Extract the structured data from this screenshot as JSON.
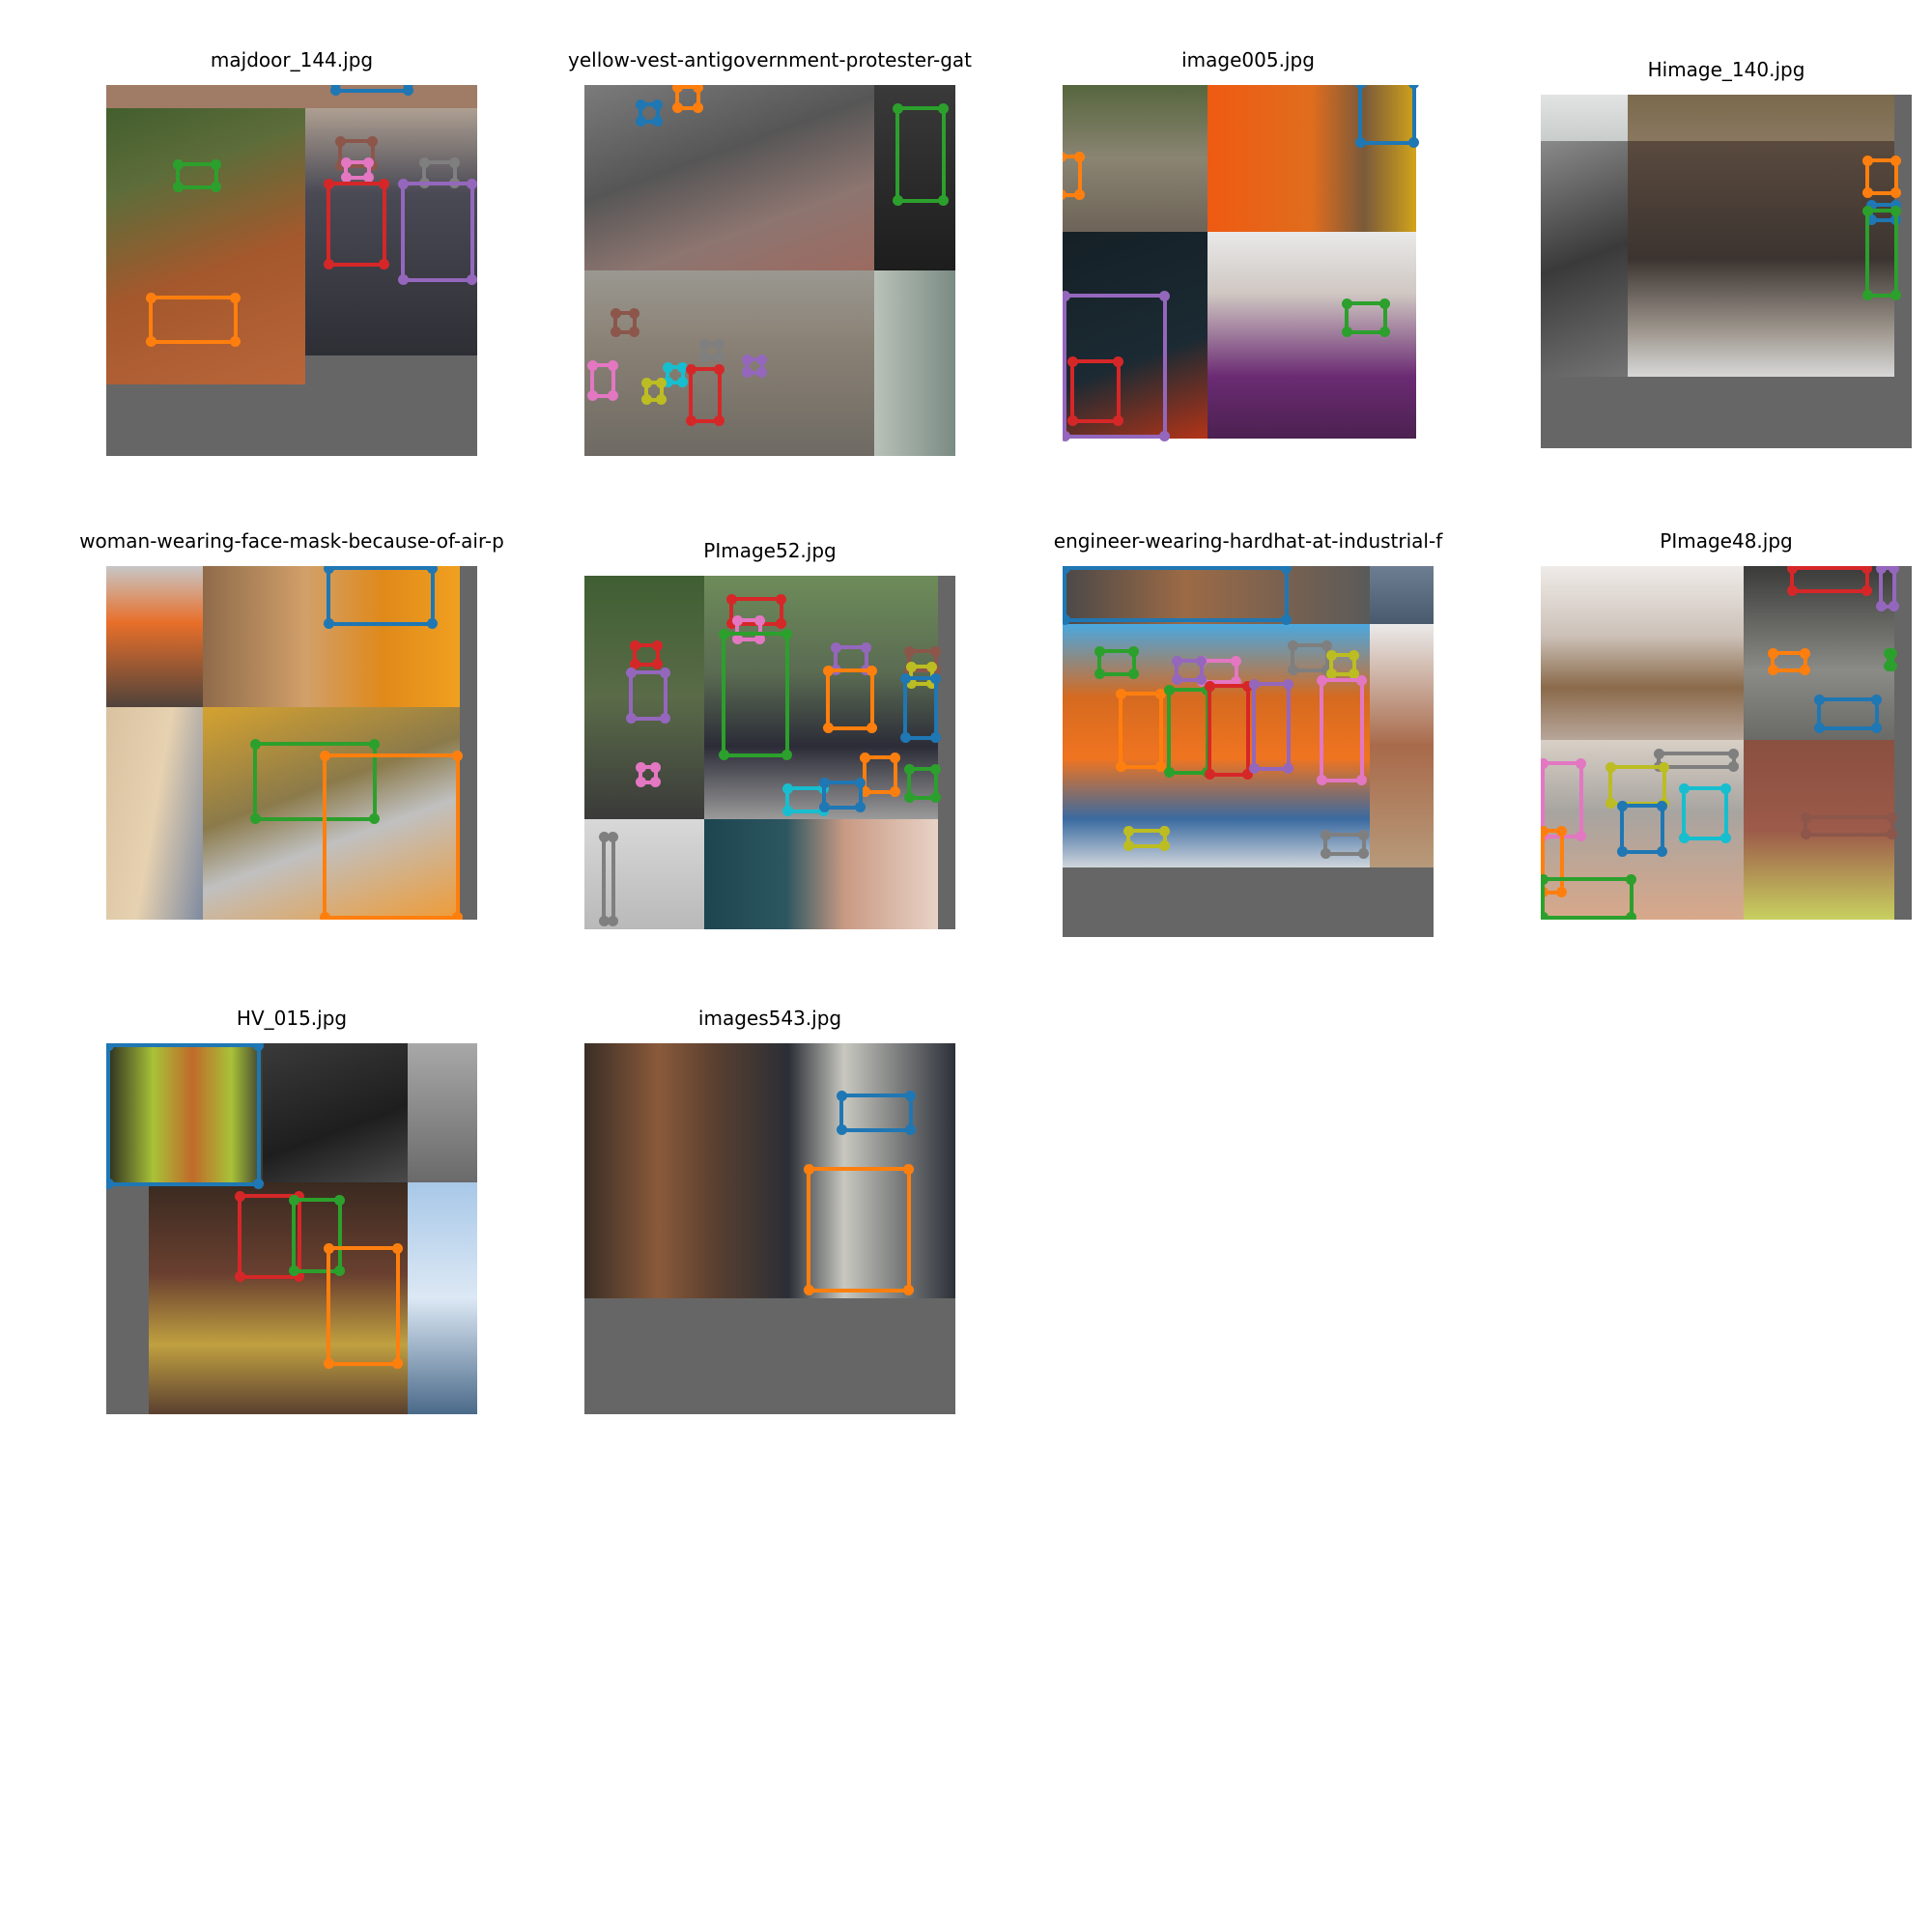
{
  "panels": [
    {
      "title": "majdoor_144.jpg"
    },
    {
      "title": "yellow-vest-antigovernment-protester-gat"
    },
    {
      "title": "image005.jpg"
    },
    {
      "title": "Himage_140.jpg"
    },
    {
      "title": "woman-wearing-face-mask-because-of-air-p"
    },
    {
      "title": "PImage52.jpg"
    },
    {
      "title": "engineer-wearing-hardhat-at-industrial-f"
    },
    {
      "title": "PImage48.jpg"
    },
    {
      "title": "HV_015.jpg"
    },
    {
      "title": "images543.jpg"
    }
  ],
  "box_colors": {
    "blue": "#1f77b4",
    "orange": "#ff7f0e",
    "green": "#2ca02c",
    "red": "#d62728",
    "purple": "#9467bd",
    "brown": "#8c564b",
    "pink": "#e377c2",
    "gray": "#7f7f7f",
    "olive": "#bcbd22",
    "cyan": "#17becf"
  }
}
